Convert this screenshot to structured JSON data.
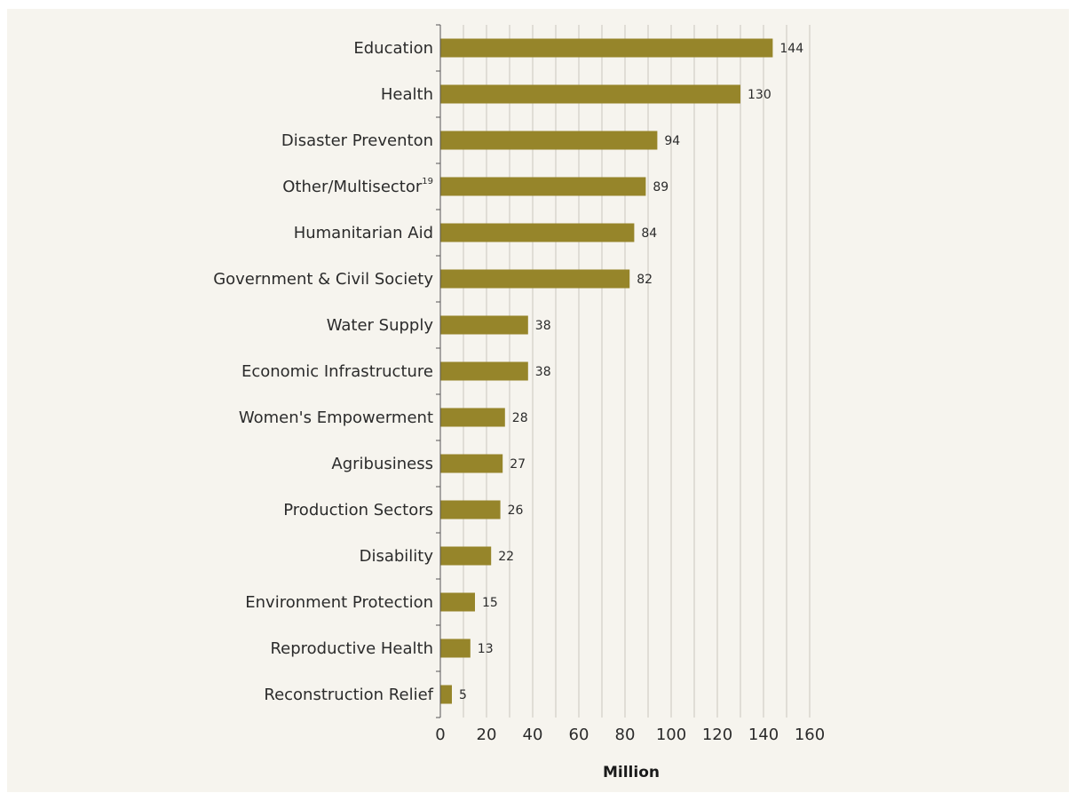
{
  "chart_data": {
    "type": "bar",
    "orientation": "horizontal",
    "categories": [
      "Education",
      "Health",
      "Disaster Preventon",
      "Other/Multisector",
      "Humanitarian Aid",
      "Government & Civil Society",
      "Water Supply",
      "Economic Infrastructure",
      "Women's Empowerment",
      "Agribusiness",
      "Production Sectors",
      "Disability",
      "Environment Protection",
      "Reproductive Health",
      "Reconstruction Relief"
    ],
    "category_footnotes": {
      "Other/Multisector": "19"
    },
    "values": [
      144,
      130,
      94,
      89,
      84,
      82,
      38,
      38,
      28,
      27,
      26,
      22,
      15,
      13,
      5
    ],
    "value_labels": [
      "144",
      "130",
      "94",
      "89",
      "84",
      "82",
      "38",
      "38",
      "28",
      "27",
      "26",
      "22",
      "15",
      "13",
      "5"
    ],
    "xlabel": "Million",
    "ylabel": "",
    "xlim": [
      0,
      160
    ],
    "x_ticks": [
      0,
      20,
      40,
      60,
      80,
      100,
      120,
      140,
      160
    ],
    "x_tick_labels": [
      "0",
      "20",
      "40",
      "60",
      "80",
      "100",
      "120",
      "140",
      "160"
    ],
    "grid": "vertical",
    "legend": "none",
    "colors": {
      "bar": "#96852a",
      "grid": "#c9c6bf",
      "axis": "#555555",
      "background": "#f6f4ee"
    }
  }
}
